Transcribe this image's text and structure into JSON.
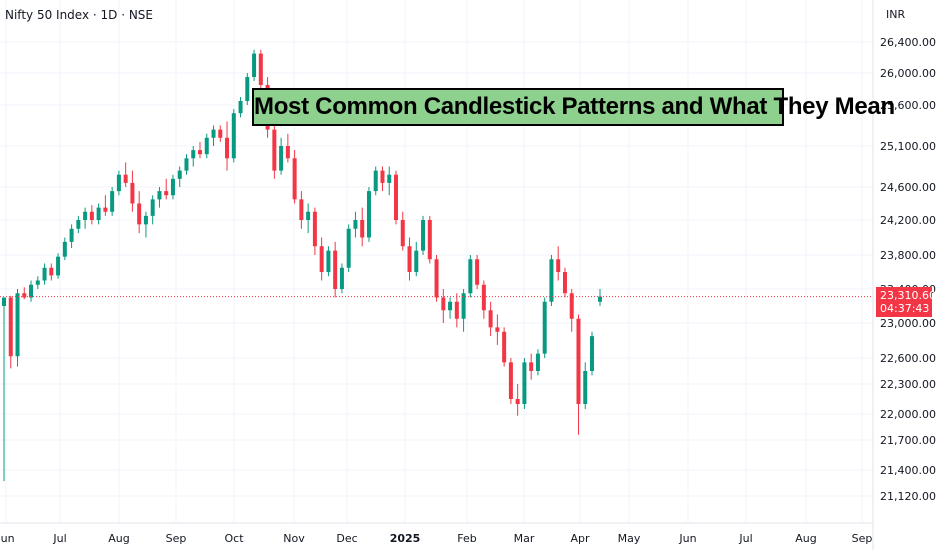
{
  "header": {
    "symbol_line": "Nifty 50 Index · 1D · NSE",
    "currency": "INR"
  },
  "banner": {
    "text": "Most Common Candlestick Patterns and What They Mean"
  },
  "last_price": {
    "value": "23,310.60",
    "countdown": "04:37:43"
  },
  "colors": {
    "up": "#089981",
    "down": "#f23645",
    "banner_bg": "#8ed08e",
    "price_line": "#f23645"
  },
  "chart_data": {
    "type": "candlestick",
    "y_tick_labels": [
      "26,400.00",
      "26,000.00",
      "25,600.00",
      "25,100.00",
      "24,600.00",
      "24,200.00",
      "23,800.00",
      "23,400.00",
      "23,000.00",
      "22,600.00",
      "22,300.00",
      "22,000.00",
      "21,700.00",
      "21,400.00",
      "21,120.00"
    ],
    "y_tick_values": [
      26400,
      26000,
      25600,
      25100,
      24600,
      24200,
      23800,
      23400,
      23000,
      22600,
      22300,
      22000,
      21700,
      21400,
      21120
    ],
    "x_tick_labels": [
      "Jun",
      "Jul",
      "Aug",
      "Sep",
      "Oct",
      "Nov",
      "Dec",
      "2025",
      "Feb",
      "Mar",
      "Apr",
      "May",
      "Jun",
      "Jul",
      "Aug",
      "Sep"
    ],
    "last_price": 23310.6,
    "candles": [
      [
        23200,
        23300,
        21280,
        23300
      ],
      [
        23300,
        23320,
        22480,
        22620
      ],
      [
        22620,
        23400,
        22500,
        23350
      ],
      [
        23350,
        23420,
        23280,
        23300
      ],
      [
        23300,
        23500,
        23250,
        23450
      ],
      [
        23450,
        23550,
        23400,
        23500
      ],
      [
        23500,
        23700,
        23450,
        23650
      ],
      [
        23650,
        23700,
        23500,
        23560
      ],
      [
        23560,
        23820,
        23520,
        23780
      ],
      [
        23780,
        24000,
        23740,
        23950
      ],
      [
        23950,
        24150,
        23880,
        24100
      ],
      [
        24100,
        24250,
        24050,
        24200
      ],
      [
        24200,
        24350,
        24100,
        24300
      ],
      [
        24300,
        24380,
        24150,
        24200
      ],
      [
        24200,
        24400,
        24150,
        24350
      ],
      [
        24350,
        24500,
        24250,
        24300
      ],
      [
        24300,
        24600,
        24250,
        24550
      ],
      [
        24550,
        24800,
        24500,
        24750
      ],
      [
        24750,
        24900,
        24600,
        24650
      ],
      [
        24650,
        24800,
        24300,
        24400
      ],
      [
        24400,
        24550,
        24050,
        24150
      ],
      [
        24150,
        24300,
        24000,
        24250
      ],
      [
        24250,
        24500,
        24150,
        24450
      ],
      [
        24450,
        24600,
        24350,
        24550
      ],
      [
        24550,
        24700,
        24450,
        24500
      ],
      [
        24500,
        24750,
        24450,
        24700
      ],
      [
        24700,
        24850,
        24600,
        24800
      ],
      [
        24800,
        25000,
        24750,
        24950
      ],
      [
        24950,
        25100,
        24850,
        25050
      ],
      [
        25050,
        25150,
        24950,
        25000
      ],
      [
        25000,
        25250,
        24950,
        25200
      ],
      [
        25200,
        25350,
        25100,
        25300
      ],
      [
        25300,
        25350,
        25150,
        25200
      ],
      [
        25200,
        25400,
        24800,
        24950
      ],
      [
        24950,
        25550,
        24900,
        25500
      ],
      [
        25500,
        25700,
        25450,
        25650
      ],
      [
        25650,
        26000,
        25600,
        25950
      ],
      [
        25950,
        26300,
        25900,
        26250
      ],
      [
        26250,
        26300,
        25800,
        25850
      ],
      [
        25850,
        25950,
        25200,
        25300
      ],
      [
        25300,
        25400,
        24700,
        24800
      ],
      [
        24800,
        25200,
        24750,
        25100
      ],
      [
        25100,
        25250,
        24900,
        24950
      ],
      [
        24950,
        25050,
        24400,
        24450
      ],
      [
        24450,
        24550,
        24100,
        24200
      ],
      [
        24200,
        24400,
        24050,
        24300
      ],
      [
        24300,
        24350,
        23800,
        23900
      ],
      [
        23900,
        24000,
        23500,
        23600
      ],
      [
        23600,
        23900,
        23550,
        23850
      ],
      [
        23850,
        23950,
        23300,
        23400
      ],
      [
        23400,
        23700,
        23350,
        23650
      ],
      [
        23650,
        24150,
        23600,
        24100
      ],
      [
        24100,
        24300,
        24000,
        24200
      ],
      [
        24200,
        24350,
        23900,
        24000
      ],
      [
        24000,
        24600,
        23950,
        24550
      ],
      [
        24550,
        24850,
        24500,
        24800
      ],
      [
        24800,
        24850,
        24550,
        24650
      ],
      [
        24650,
        24850,
        24500,
        24750
      ],
      [
        24750,
        24800,
        24150,
        24200
      ],
      [
        24200,
        24300,
        23850,
        23900
      ],
      [
        23900,
        24000,
        23500,
        23600
      ],
      [
        23600,
        23950,
        23550,
        23850
      ],
      [
        23850,
        24250,
        23800,
        24200
      ],
      [
        24200,
        24250,
        23700,
        23750
      ],
      [
        23750,
        23800,
        23250,
        23300
      ],
      [
        23300,
        23400,
        23000,
        23150
      ],
      [
        23150,
        23300,
        23050,
        23250
      ],
      [
        23250,
        23350,
        22950,
        23050
      ],
      [
        23050,
        23400,
        22900,
        23350
      ],
      [
        23350,
        23800,
        23300,
        23750
      ],
      [
        23750,
        23800,
        23400,
        23450
      ],
      [
        23450,
        23500,
        23050,
        23150
      ],
      [
        23150,
        23250,
        22850,
        22950
      ],
      [
        22950,
        23100,
        22750,
        22900
      ],
      [
        22900,
        22950,
        22500,
        22550
      ],
      [
        22550,
        22600,
        22100,
        22150
      ],
      [
        22150,
        22300,
        21980,
        22100
      ],
      [
        22100,
        22600,
        22050,
        22550
      ],
      [
        22550,
        22650,
        22350,
        22450
      ],
      [
        22450,
        22700,
        22400,
        22650
      ],
      [
        22650,
        23300,
        22600,
        23250
      ],
      [
        23250,
        23800,
        23200,
        23750
      ],
      [
        23750,
        23900,
        23500,
        23600
      ],
      [
        23600,
        23650,
        23300,
        23350
      ],
      [
        23350,
        23400,
        22900,
        23050
      ],
      [
        23050,
        23100,
        21760,
        22100
      ],
      [
        22100,
        22550,
        22050,
        22450
      ],
      [
        22450,
        22900,
        22400,
        22850
      ],
      [
        23250,
        23400,
        23200,
        23310.6
      ]
    ]
  }
}
